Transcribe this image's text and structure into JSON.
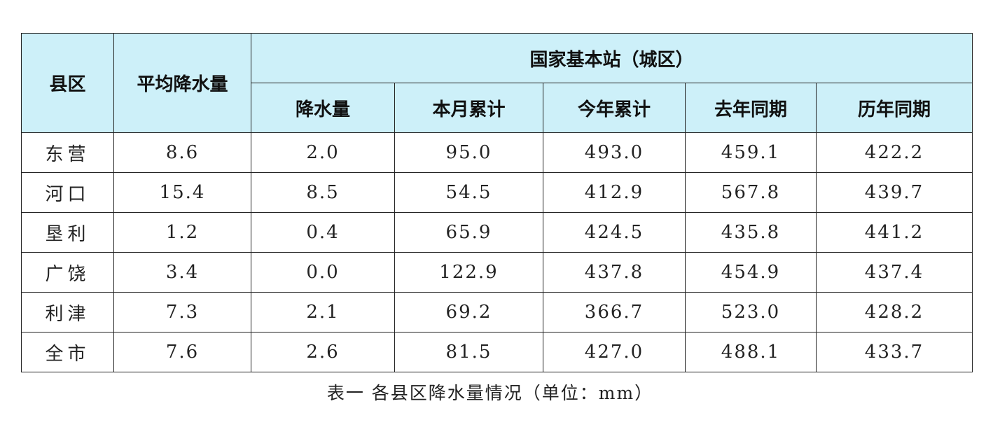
{
  "table": {
    "header": {
      "county": "县区",
      "average": "平均降水量",
      "group": "国家基本站（城区）",
      "sub": [
        "降水量",
        "本月累计",
        "今年累计",
        "去年同期",
        "历年同期"
      ]
    },
    "rows": [
      [
        "东营",
        "8.6",
        "2.0",
        "95.0",
        "493.0",
        "459.1",
        "422.2"
      ],
      [
        "河口",
        "15.4",
        "8.5",
        "54.5",
        "412.9",
        "567.8",
        "439.7"
      ],
      [
        "垦利",
        "1.2",
        "0.4",
        "65.9",
        "424.5",
        "435.8",
        "441.2"
      ],
      [
        "广饶",
        "3.4",
        "0.0",
        "122.9",
        "437.8",
        "454.9",
        "437.4"
      ],
      [
        "利津",
        "7.3",
        "2.1",
        "69.2",
        "366.7",
        "523.0",
        "428.2"
      ],
      [
        "全市",
        "7.6",
        "2.6",
        "81.5",
        "427.0",
        "488.1",
        "433.7"
      ]
    ]
  },
  "caption": "表一 各县区降水量情况（单位：mm）"
}
